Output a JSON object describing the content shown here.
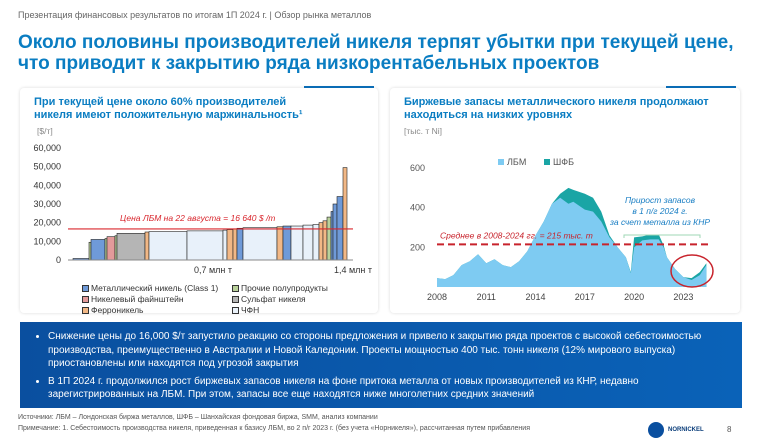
{
  "header": {
    "breadcrumb": "Презентация финансовых результатов по итогам 1П 2024 г. | Обзор рынка металлов",
    "title": "Около половины производителей никеля терпят убытки при текущей цене, что приводит к закрытию ряда низкорентабельных проектов"
  },
  "chart_data": [
    {
      "type": "bar",
      "subtype": "cost-curve",
      "title": "При текущей цене около 60% производителей никеля имеют положительную маржинальность¹",
      "ylabel": "[$/т]",
      "ylim": [
        0,
        60000
      ],
      "yticks": [
        "0",
        "10,000",
        "20,000",
        "30,000",
        "40,000",
        "50,000",
        "60,000"
      ],
      "xlim": [
        0,
        1.4
      ],
      "xticks": [
        {
          "value": 0.7,
          "label": "0,7 млн т"
        },
        {
          "value": 1.4,
          "label": "1,4 млн т"
        }
      ],
      "reference_line": {
        "value": 16640,
        "label": "Цена ЛБМ на 22 августа = 16 640 $ /т",
        "color": "#d9272e"
      },
      "categories": [
        {
          "key": "c1",
          "name": "Металлический никель (Class 1)",
          "color": "#6f9ad8"
        },
        {
          "key": "pp",
          "name": "Прочие полупродукты",
          "color": "#b9d19a"
        },
        {
          "key": "mt",
          "name": "Никелевый файнштейн",
          "color": "#e39a9a"
        },
        {
          "key": "su",
          "name": "Сульфат никеля",
          "color": "#b5b5b5"
        },
        {
          "key": "fe",
          "name": "Ферроникель",
          "color": "#f2b886"
        },
        {
          "key": "npi",
          "name": "ЧФН",
          "color": "#eaf2fa"
        }
      ],
      "segments": [
        [
          "c1",
          0,
          0.08,
          800
        ],
        [
          "pp",
          0.08,
          0.09,
          9500
        ],
        [
          "c1",
          0.09,
          0.16,
          11000
        ],
        [
          "pp",
          0.16,
          0.17,
          11500
        ],
        [
          "mt",
          0.17,
          0.21,
          12500
        ],
        [
          "pp",
          0.21,
          0.22,
          13000
        ],
        [
          "su",
          0.22,
          0.36,
          14300
        ],
        [
          "fe",
          0.36,
          0.38,
          15000
        ],
        [
          "npi",
          0.38,
          0.57,
          15200
        ],
        [
          "npi",
          0.57,
          0.75,
          15600
        ],
        [
          "npi",
          0.75,
          0.77,
          16000
        ],
        [
          "fe",
          0.77,
          0.8,
          16300
        ],
        [
          "fe",
          0.8,
          0.82,
          16600
        ],
        [
          "c1",
          0.82,
          0.85,
          17000
        ],
        [
          "npi",
          0.85,
          1.02,
          17300
        ],
        [
          "fe",
          1.02,
          1.05,
          17800
        ],
        [
          "c1",
          1.05,
          1.09,
          18200
        ],
        [
          "npi",
          1.09,
          1.15,
          18200
        ],
        [
          "npi",
          1.15,
          1.2,
          18700
        ],
        [
          "npi",
          1.2,
          1.23,
          19000
        ],
        [
          "fe",
          1.23,
          1.25,
          20000
        ],
        [
          "fe",
          1.25,
          1.27,
          21000
        ],
        [
          "pp",
          1.27,
          1.29,
          23000
        ],
        [
          "c1",
          1.29,
          1.3,
          26000
        ],
        [
          "c1",
          1.3,
          1.32,
          30000
        ],
        [
          "c1",
          1.32,
          1.35,
          34000
        ],
        [
          "fe",
          1.35,
          1.37,
          49500
        ]
      ]
    },
    {
      "type": "area",
      "title": "Биржевые запасы металлического никеля продолжают находиться на низких уровнях",
      "ylabel": "[тыс. т Ni]",
      "ylim": [
        0,
        600
      ],
      "yticks": [
        "200",
        "400",
        "600"
      ],
      "xlim": [
        2008,
        2024.5
      ],
      "xticks": [
        "2008",
        "2011",
        "2014",
        "2017",
        "2020",
        "2023"
      ],
      "x": [
        2008,
        2008.5,
        2009,
        2009.5,
        2010,
        2010.5,
        2011,
        2011.5,
        2012,
        2012.5,
        2013,
        2013.5,
        2014,
        2014.5,
        2015,
        2015.5,
        2016,
        2016.3,
        2017,
        2017.5,
        2018,
        2018.5,
        2019,
        2019.5,
        2019.8,
        2020,
        2020.5,
        2021,
        2021.5,
        2021.8,
        2022,
        2022.5,
        2023,
        2023.5,
        2024,
        2024.4
      ],
      "series": [
        {
          "name": "ЛБМ",
          "color": "#7ecbf2",
          "values": [
            45,
            40,
            60,
            110,
            130,
            165,
            120,
            140,
            110,
            100,
            130,
            180,
            260,
            330,
            420,
            450,
            420,
            430,
            390,
            380,
            330,
            250,
            200,
            150,
            70,
            200,
            235,
            240,
            240,
            200,
            150,
            90,
            50,
            35,
            60,
            110
          ]
        },
        {
          "name": "ШФБ",
          "color": "#1aa5a5",
          "stacked_total": [
            45,
            40,
            60,
            110,
            130,
            165,
            120,
            140,
            110,
            100,
            130,
            180,
            260,
            330,
            420,
            470,
            500,
            490,
            470,
            450,
            380,
            260,
            200,
            150,
            75,
            250,
            255,
            265,
            265,
            210,
            150,
            90,
            50,
            45,
            75,
            120
          ]
        }
      ],
      "reference_line": {
        "value": 215,
        "label": "Среднее в 2008-2024 гг. = 215 тыс. т",
        "color": "#c8232c"
      },
      "annotation": "Прирост запасов в 1 п/г 2024 г. за счет металла из КНР"
    }
  ],
  "bullets": [
    "Снижение цены до 16,000 $/т запустило реакцию со стороны предложения и привело к закрытию ряда проектов с высокой себестоимостью производства, преимущественно в Австралии и Новой Каледонии. Проекты мощностью 400 тыс. тонн никеля (12% мирового выпуска) приостановлены или находятся под угрозой закрытия",
    "В 1П 2024 г. продолжился рост биржевых запасов никеля на фоне притока металла от новых производителей из КНР, недавно зарегистрированных на ЛБМ. При этом, запасы все еще находятся ниже многолетних средних значений"
  ],
  "footer": {
    "sources": "Источники: ЛБМ – Лондонская биржа металлов, ШФБ – Шанхайская фондовая биржа, SMM, анализ компании",
    "note": "Примечание: 1. Себестоимость производства никеля, приведенная к базису ЛБМ, во 2 п/г 2023 г. (без учета «Норникеля»), рассчитанная путем прибавления",
    "logo": "NORNICKEL",
    "page": "8"
  }
}
